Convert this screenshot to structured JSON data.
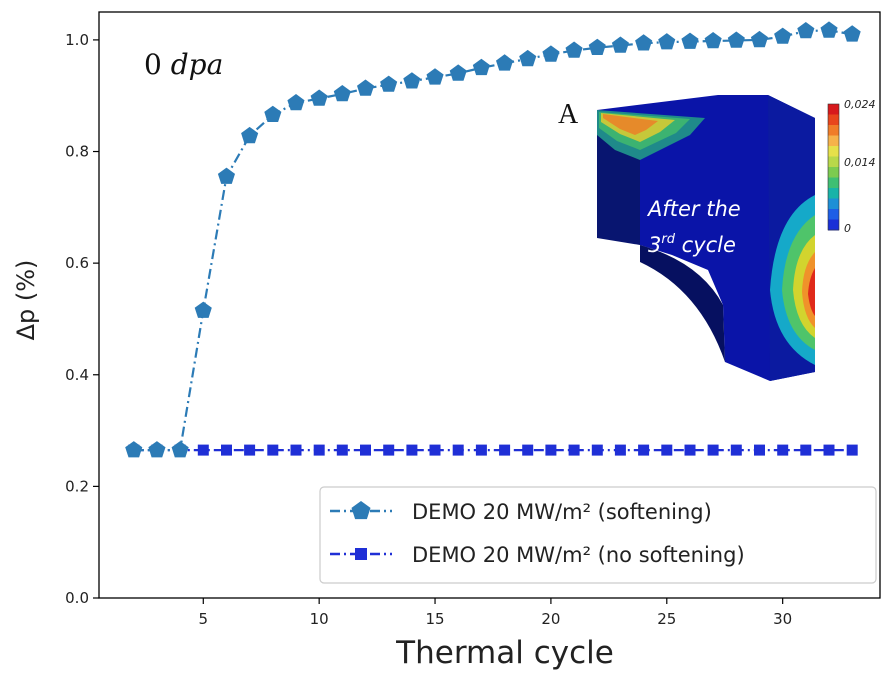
{
  "colors": {
    "softening": "#2c7bb6",
    "no_softening": "#1f2fd6",
    "inset_blue": "#0a14a8",
    "inset_dark": "#061060"
  },
  "chart_data": {
    "type": "line",
    "xlabel": "Thermal cycle",
    "ylabel": "Δp (%)",
    "xlim": [
      0.5,
      34.2
    ],
    "ylim": [
      0.0,
      1.05
    ],
    "xticks": [
      5,
      10,
      15,
      20,
      25,
      30
    ],
    "yticks": [
      0.0,
      0.2,
      0.4,
      0.6,
      0.8,
      1.0
    ],
    "ytick_labels": [
      "0.0",
      "0.2",
      "0.4",
      "0.6",
      "0.8",
      "1.0"
    ],
    "grid": false,
    "legend_position": "bottom-right",
    "x": [
      2,
      3,
      4,
      5,
      6,
      7,
      8,
      9,
      10,
      11,
      12,
      13,
      14,
      15,
      16,
      17,
      18,
      19,
      20,
      21,
      22,
      23,
      24,
      25,
      26,
      27,
      28,
      29,
      30,
      31,
      32,
      33
    ],
    "series": [
      {
        "name": "DEMO 20 MW/m² (softening)",
        "marker": "pentagon",
        "linestyle": "dashdot",
        "values": [
          0.265,
          0.265,
          0.265,
          0.515,
          0.755,
          0.828,
          0.866,
          0.887,
          0.895,
          0.903,
          0.913,
          0.92,
          0.926,
          0.933,
          0.94,
          0.95,
          0.958,
          0.966,
          0.974,
          0.981,
          0.986,
          0.99,
          0.994,
          0.996,
          0.997,
          0.998,
          0.999,
          1.0,
          1.006,
          1.016,
          1.017,
          1.01
        ]
      },
      {
        "name": "DEMO 20 MW/m² (no softening)",
        "marker": "square",
        "linestyle": "dashdot",
        "values": [
          0.265,
          0.265,
          0.265,
          0.265,
          0.265,
          0.265,
          0.265,
          0.265,
          0.265,
          0.265,
          0.265,
          0.265,
          0.265,
          0.265,
          0.265,
          0.265,
          0.265,
          0.265,
          0.265,
          0.265,
          0.265,
          0.265,
          0.265,
          0.265,
          0.265,
          0.265,
          0.265,
          0.265,
          0.265,
          0.265,
          0.265,
          0.265
        ]
      }
    ],
    "annotations": {
      "dpa": "0 dpa",
      "inset_label": "A",
      "inset_caption_line1": "After the",
      "inset_caption_line2": "3rd cycle",
      "colorbar_labels": [
        "0,024",
        "0,014",
        "0"
      ]
    }
  }
}
